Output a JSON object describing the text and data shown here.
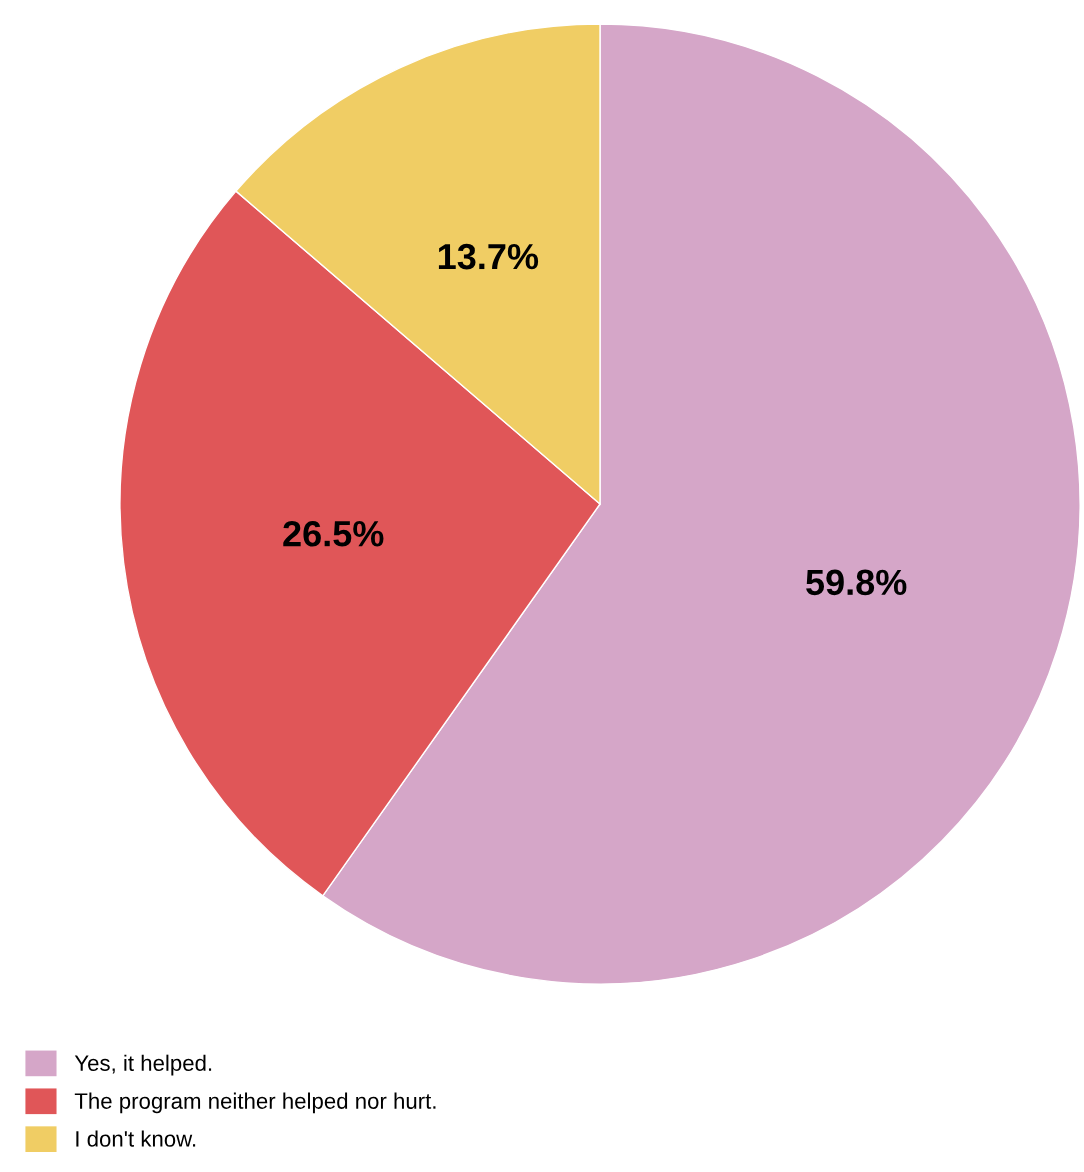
{
  "chart_data": {
    "type": "pie",
    "categories": [
      "Yes, it helped.",
      "The program neither helped nor hurt.",
      "I don't know."
    ],
    "values": [
      59.8,
      26.5,
      13.7
    ],
    "colors": [
      "#d5a6c8",
      "#e05658",
      "#f0cd64"
    ],
    "value_labels": [
      "59.8%",
      "26.5%",
      "13.7%"
    ],
    "legend": "bottom left"
  }
}
